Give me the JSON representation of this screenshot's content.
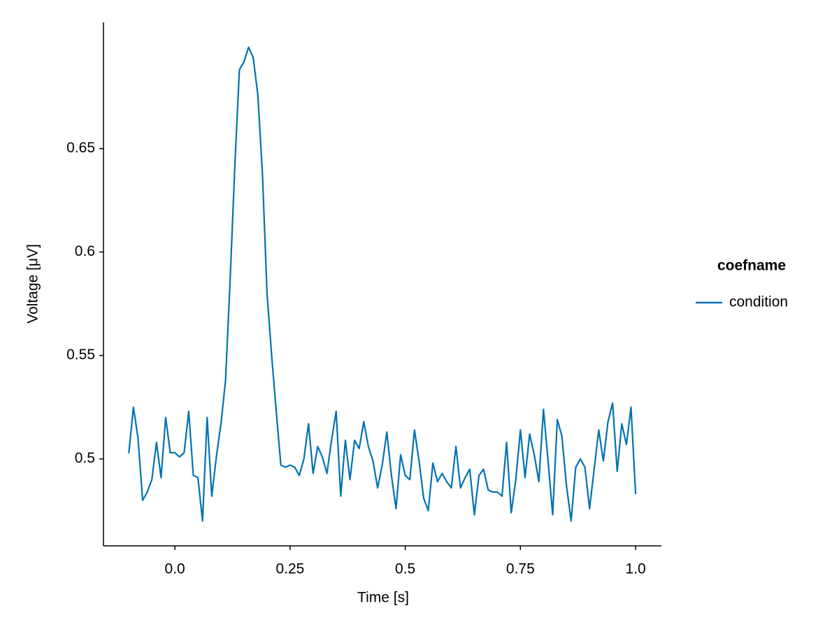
{
  "chart_data": {
    "type": "line",
    "xlabel": "Time [s]",
    "ylabel": "Voltage [μV]",
    "legend_title": "coefname",
    "legend_position": "right",
    "x": [
      -0.1,
      -0.09,
      -0.08,
      -0.07,
      -0.06,
      -0.05,
      -0.04,
      -0.03,
      -0.02,
      -0.01,
      0,
      0.01,
      0.02,
      0.03,
      0.04,
      0.05,
      0.06,
      0.07,
      0.08,
      0.09,
      0.1,
      0.11,
      0.12,
      0.13,
      0.14,
      0.15,
      0.16,
      0.17,
      0.18,
      0.19,
      0.2,
      0.21,
      0.22,
      0.23,
      0.24,
      0.25,
      0.26,
      0.27,
      0.28,
      0.29,
      0.3,
      0.31,
      0.32,
      0.33,
      0.34,
      0.35,
      0.36,
      0.37,
      0.38,
      0.39,
      0.4,
      0.41,
      0.42,
      0.43,
      0.44,
      0.45,
      0.46,
      0.47,
      0.48,
      0.49,
      0.5,
      0.51,
      0.52,
      0.53,
      0.54,
      0.55,
      0.56,
      0.57,
      0.58,
      0.59,
      0.6,
      0.61,
      0.62,
      0.63,
      0.64,
      0.65,
      0.66,
      0.67,
      0.68,
      0.69,
      0.7,
      0.71,
      0.72,
      0.73,
      0.74,
      0.75,
      0.76,
      0.77,
      0.78,
      0.79,
      0.8,
      0.81,
      0.82,
      0.83,
      0.84,
      0.85,
      0.86,
      0.87,
      0.88,
      0.89,
      0.9,
      0.91,
      0.92,
      0.93,
      0.94,
      0.95,
      0.96,
      0.97,
      0.98,
      0.99,
      1.0
    ],
    "series": [
      {
        "name": "condition",
        "color": "#0072b2",
        "values": [
          0.5027,
          0.525,
          0.51,
          0.48,
          0.484,
          0.49,
          0.508,
          0.491,
          0.52,
          0.503,
          0.503,
          0.501,
          0.503,
          0.523,
          0.492,
          0.491,
          0.47,
          0.52,
          0.482,
          0.501,
          0.517,
          0.538,
          0.587,
          0.641,
          0.688,
          0.692,
          0.699,
          0.694,
          0.676,
          0.638,
          0.58,
          0.55,
          0.523,
          0.497,
          0.496,
          0.497,
          0.496,
          0.492,
          0.5,
          0.517,
          0.493,
          0.506,
          0.501,
          0.493,
          0.509,
          0.523,
          0.482,
          0.509,
          0.49,
          0.509,
          0.505,
          0.518,
          0.506,
          0.499,
          0.486,
          0.497,
          0.513,
          0.492,
          0.476,
          0.502,
          0.492,
          0.49,
          0.514,
          0.499,
          0.481,
          0.475,
          0.498,
          0.489,
          0.493,
          0.489,
          0.486,
          0.506,
          0.486,
          0.491,
          0.495,
          0.473,
          0.492,
          0.495,
          0.485,
          0.484,
          0.484,
          0.482,
          0.508,
          0.474,
          0.49,
          0.514,
          0.491,
          0.512,
          0.502,
          0.489,
          0.524,
          0.499,
          0.473,
          0.519,
          0.511,
          0.487,
          0.47,
          0.496,
          0.5,
          0.496,
          0.476,
          0.495,
          0.514,
          0.499,
          0.518,
          0.527,
          0.494,
          0.517,
          0.507,
          0.525,
          0.483
        ]
      }
    ],
    "xlim": [
      -0.155,
      1.056
    ],
    "ylim": [
      0.458,
      0.711
    ],
    "xticks": [
      {
        "value": 0,
        "label": "0.0"
      },
      0.25,
      0.5,
      0.75,
      {
        "value": 1,
        "label": "1.0"
      }
    ],
    "yticks": [
      0.5,
      0.55,
      0.6,
      0.65
    ],
    "grid": false
  }
}
